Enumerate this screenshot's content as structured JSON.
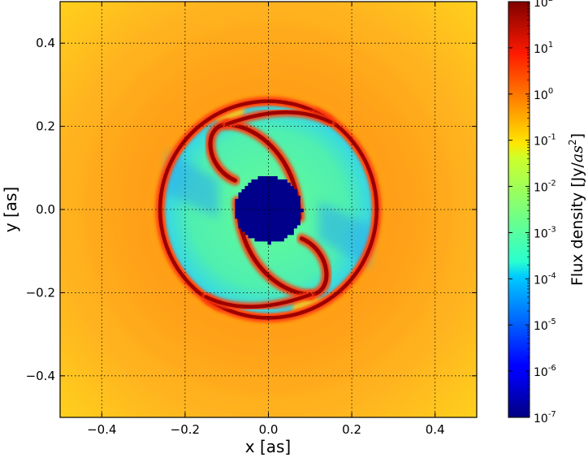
{
  "chart_data": {
    "type": "heatmap",
    "title": "",
    "xlabel": "x [as]",
    "ylabel": "y [as]",
    "xlim": [
      -0.5,
      0.5
    ],
    "ylim": [
      -0.5,
      0.5
    ],
    "xticks": [
      -0.4,
      -0.2,
      0.0,
      0.2,
      0.4
    ],
    "yticks": [
      -0.4,
      -0.2,
      0.0,
      0.2,
      0.4
    ],
    "xtick_labels": [
      "−0.4",
      "−0.2",
      "0.0",
      "0.2",
      "0.4"
    ],
    "ytick_labels": [
      "−0.4",
      "−0.2",
      "0.0",
      "0.2",
      "0.4"
    ],
    "grid": true,
    "grid_style": "dotted",
    "colormap": "jet",
    "color_scale": "log",
    "colorbar": {
      "label_main": "Flux density [Jy/",
      "label_unit": "as",
      "label_exp": "2",
      "label_close": "]",
      "range": [
        1e-07,
        100
      ],
      "ticks": [
        {
          "value": 100,
          "base": "10",
          "exp": "2"
        },
        {
          "value": 10,
          "base": "10",
          "exp": "1"
        },
        {
          "value": 1,
          "base": "10",
          "exp": "0"
        },
        {
          "value": 0.1,
          "base": "10",
          "exp": "-1"
        },
        {
          "value": 0.01,
          "base": "10",
          "exp": "-2"
        },
        {
          "value": 0.001,
          "base": "10",
          "exp": "-3"
        },
        {
          "value": 0.0001,
          "base": "10",
          "exp": "-4"
        },
        {
          "value": 1e-05,
          "base": "10",
          "exp": "-5"
        },
        {
          "value": 1e-06,
          "base": "10",
          "exp": "-6"
        },
        {
          "value": 1e-07,
          "base": "10",
          "exp": "-7"
        }
      ]
    },
    "features": [
      {
        "name": "central-hole",
        "shape": "disk",
        "center": [
          0.0,
          0.0
        ],
        "radius": 0.08,
        "flux": 1e-07
      },
      {
        "name": "outer-ring",
        "shape": "ring",
        "center": [
          0.0,
          0.0
        ],
        "radius": 0.26,
        "flux": 100
      },
      {
        "name": "inner-cavity",
        "shape": "disk",
        "center": [
          0.0,
          0.0
        ],
        "radius": 0.25,
        "flux": 0.001
      },
      {
        "name": "spiral-arm-upper",
        "shape": "spiral",
        "from": [
          0.08,
          0.01
        ],
        "to": [
          -0.15,
          0.13
        ],
        "flux": 100
      },
      {
        "name": "spiral-arm-lower",
        "shape": "spiral",
        "from": [
          -0.08,
          -0.01
        ],
        "to": [
          0.15,
          -0.13
        ],
        "flux": 100
      },
      {
        "name": "background",
        "shape": "field",
        "flux": 0.1
      }
    ]
  }
}
